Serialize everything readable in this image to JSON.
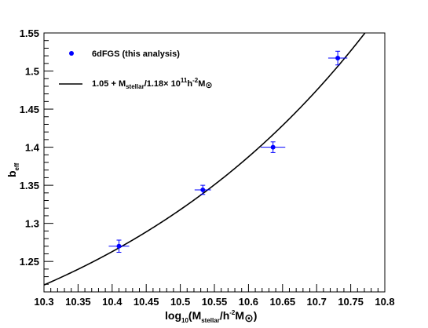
{
  "chart_data": {
    "type": "scatter",
    "xlabel": {
      "main": "log",
      "sub1": "10",
      "mid": "(M",
      "sub2": "stellar",
      "tail": "/h",
      "sup": "-2",
      "end": "M",
      "sym": "⊙",
      "close": ")"
    },
    "ylabel": {
      "main": "b",
      "sub": "eff"
    },
    "xlim": [
      10.3,
      10.8
    ],
    "ylim": [
      1.21,
      1.55
    ],
    "x_ticks": [
      "10.3",
      "10.35",
      "10.4",
      "10.45",
      "10.5",
      "10.55",
      "10.6",
      "10.65",
      "10.7",
      "10.75",
      "10.8"
    ],
    "y_ticks": [
      "1.25",
      "1.3",
      "1.35",
      "1.4",
      "1.45",
      "1.5",
      "1.55"
    ],
    "legend": {
      "points_label": "6dFGS (this analysis)",
      "curve_label": {
        "a": "1.05 + M",
        "sub1": "stellar",
        "b": "/1.18× 10",
        "sup1": "11",
        "c": "h",
        "sup2": "-2",
        "d": "M",
        "sym": "⊙"
      }
    },
    "series": [
      {
        "kind": "points",
        "color": "#0000ff",
        "x": [
          10.41,
          10.533,
          10.636,
          10.731
        ],
        "y": [
          1.27,
          1.344,
          1.4,
          1.517
        ],
        "xerr": [
          0.015,
          0.012,
          0.018,
          0.014
        ],
        "yerr": [
          0.008,
          0.006,
          0.007,
          0.009
        ]
      },
      {
        "kind": "curve",
        "color": "#000000",
        "offset": 1.05,
        "scale_log": 11.0719
      }
    ]
  }
}
